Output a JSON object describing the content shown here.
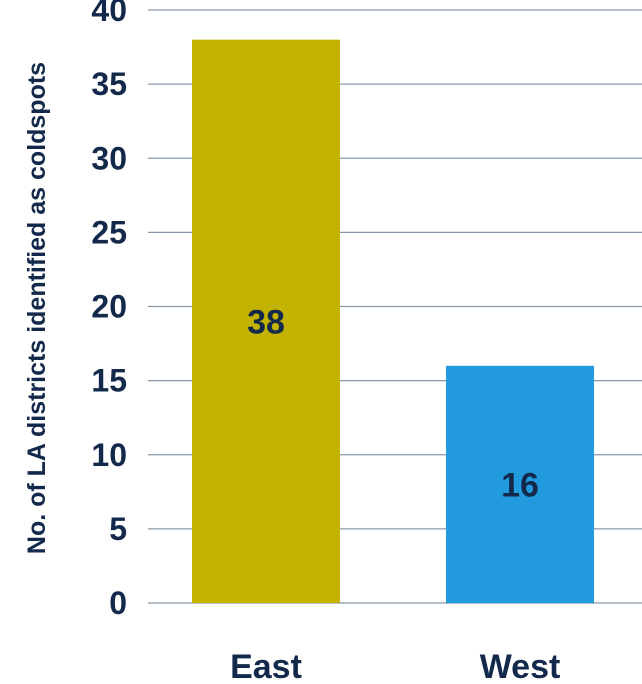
{
  "chart_data": {
    "type": "bar",
    "categories": [
      "East",
      "West"
    ],
    "values": [
      38,
      16
    ],
    "data_labels": [
      "38",
      "16"
    ],
    "title": "",
    "xlabel": "",
    "ylabel": "No. of LA districts identified as coldspots",
    "ylim": [
      0,
      40
    ],
    "yticks": [
      0,
      5,
      10,
      15,
      20,
      25,
      30,
      35,
      40
    ],
    "grid": true,
    "legend": "none",
    "colors": [
      "#c4b200",
      "#229ade"
    ]
  },
  "colors": {
    "text": "#13294b",
    "grid": "#8a97a8"
  }
}
